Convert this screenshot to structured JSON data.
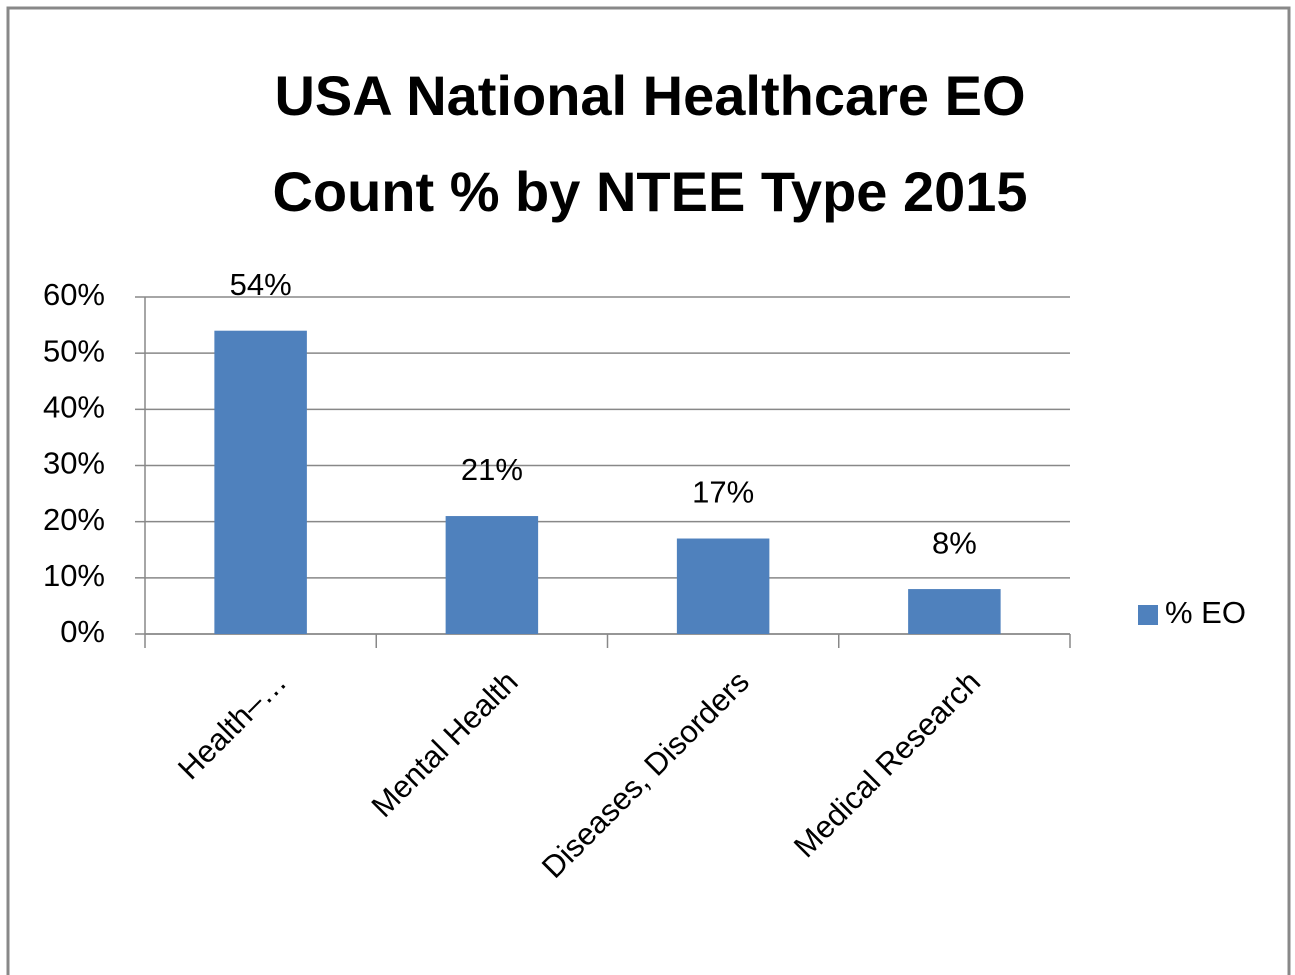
{
  "chart_data": {
    "type": "bar",
    "title": [
      "USA National Healthcare EO",
      "Count % by NTEE Type 2015"
    ],
    "categories": [
      "Health–…",
      "Mental Health",
      "Diseases, Disorders",
      "Medical Research"
    ],
    "series": [
      {
        "name": "% EO",
        "color": "#4f81bd",
        "values": [
          54,
          21,
          17,
          8
        ],
        "value_labels": [
          "54%",
          "21%",
          "17%",
          "8%"
        ]
      }
    ],
    "ylim": [
      0,
      60
    ],
    "yticks": [
      {
        "value": 0,
        "label": "0%"
      },
      {
        "value": 10,
        "label": "10%"
      },
      {
        "value": 20,
        "label": "20%"
      },
      {
        "value": 30,
        "label": "30%"
      },
      {
        "value": 40,
        "label": "40%"
      },
      {
        "value": 50,
        "label": "50%"
      },
      {
        "value": 60,
        "label": "60%"
      }
    ],
    "grid": true,
    "legend": "right"
  }
}
